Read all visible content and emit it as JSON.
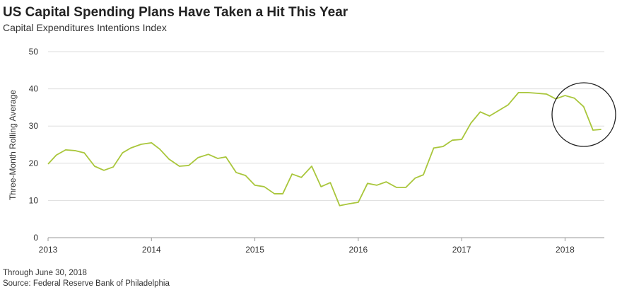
{
  "chart_data": {
    "type": "line",
    "title": "US Capital Spending Plans Have Taken a Hit This Year",
    "subtitle": "Capital Expenditures Intentions Index",
    "y_label": "Three-Month Rolling Average",
    "notes": [
      "Through June 30, 2018",
      "Source: Federal Reserve Bank of Philadelphia"
    ],
    "x": [
      2013.0,
      2013.08,
      2013.17,
      2013.26,
      2013.35,
      2013.45,
      2013.54,
      2013.63,
      2013.72,
      2013.8,
      2013.9,
      2014.0,
      2014.08,
      2014.17,
      2014.27,
      2014.36,
      2014.45,
      2014.55,
      2014.64,
      2014.72,
      2014.82,
      2014.91,
      2015.0,
      2015.09,
      2015.19,
      2015.27,
      2015.36,
      2015.45,
      2015.55,
      2015.64,
      2015.73,
      2015.82,
      2015.91,
      2016.0,
      2016.09,
      2016.18,
      2016.27,
      2016.37,
      2016.46,
      2016.55,
      2016.63,
      2016.73,
      2016.82,
      2016.91,
      2017.0,
      2017.09,
      2017.18,
      2017.27,
      2017.36,
      2017.45,
      2017.55,
      2017.64,
      2017.73,
      2017.82,
      2017.91,
      2018.0,
      2018.09,
      2018.18,
      2018.27,
      2018.35
    ],
    "series": [
      {
        "name": "Capital Expenditures Intentions Index",
        "color": "#a9c63b",
        "values": [
          19.8,
          22.2,
          23.6,
          23.4,
          22.8,
          19.2,
          18.1,
          19.0,
          22.8,
          24.1,
          25.1,
          25.5,
          23.8,
          21.1,
          19.2,
          19.4,
          21.5,
          22.4,
          21.3,
          21.7,
          17.5,
          16.7,
          14.1,
          13.7,
          11.8,
          11.8,
          17.1,
          16.2,
          19.2,
          13.7,
          14.8,
          8.6,
          9.1,
          9.5,
          14.6,
          14.1,
          15.0,
          13.5,
          13.5,
          16.0,
          16.9,
          24.1,
          24.5,
          26.2,
          26.4,
          30.8,
          33.8,
          32.7,
          34.2,
          35.7,
          39.0,
          39.0,
          38.8,
          38.6,
          37.3,
          38.2,
          37.5,
          35.2,
          28.9,
          29.1
        ]
      }
    ],
    "xlim": [
      2013,
      2018.38
    ],
    "xticks": [
      2013,
      2014,
      2015,
      2016,
      2017,
      2018
    ],
    "ylim": [
      0,
      50
    ],
    "yticks": [
      0,
      10,
      20,
      30,
      40,
      50
    ],
    "grid": true
  }
}
